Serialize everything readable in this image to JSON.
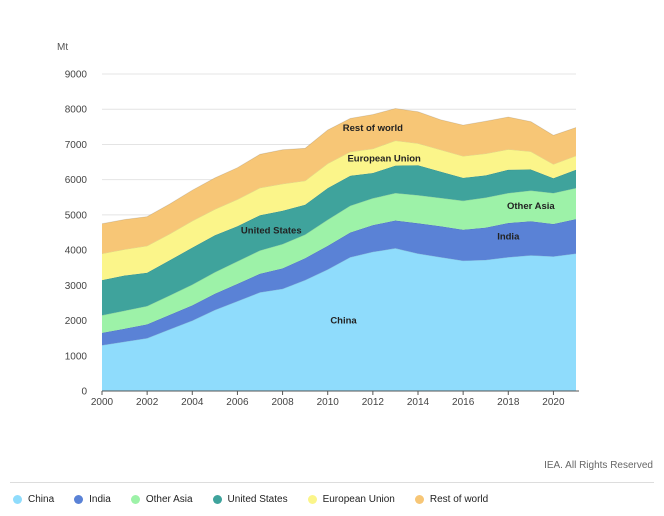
{
  "chart_data": {
    "type": "area",
    "stacked": true,
    "unit_label": "Mt",
    "x": [
      2000,
      2001,
      2002,
      2003,
      2004,
      2005,
      2006,
      2007,
      2008,
      2009,
      2010,
      2011,
      2012,
      2013,
      2014,
      2015,
      2016,
      2017,
      2018,
      2019,
      2020,
      2021
    ],
    "xticks": [
      2000,
      2002,
      2004,
      2006,
      2008,
      2010,
      2012,
      2014,
      2016,
      2018,
      2020
    ],
    "yticks": [
      0,
      1000,
      2000,
      3000,
      4000,
      5000,
      6000,
      7000,
      8000,
      9000
    ],
    "ylim": [
      0,
      9000
    ],
    "grid": true,
    "legend_position": "bottom",
    "series": [
      {
        "name": "China",
        "color": "#8fdcfc",
        "values": [
          1300,
          1400,
          1500,
          1750,
          2000,
          2300,
          2550,
          2800,
          2900,
          3150,
          3450,
          3800,
          3950,
          4050,
          3900,
          3800,
          3700,
          3720,
          3800,
          3850,
          3820,
          3900
        ]
      },
      {
        "name": "India",
        "color": "#5a82d6",
        "values": [
          350,
          370,
          390,
          410,
          430,
          460,
          490,
          530,
          580,
          620,
          670,
          700,
          760,
          790,
          860,
          880,
          880,
          920,
          970,
          970,
          920,
          980
        ]
      },
      {
        "name": "Other Asia",
        "color": "#9df2a8",
        "values": [
          500,
          510,
          520,
          550,
          590,
          610,
          640,
          660,
          690,
          670,
          740,
          760,
          760,
          780,
          800,
          800,
          820,
          850,
          850,
          870,
          880,
          880
        ]
      },
      {
        "name": "United States",
        "color": "#3fa39c",
        "values": [
          1000,
          1000,
          950,
          1000,
          1050,
          1050,
          1000,
          1000,
          950,
          850,
          900,
          850,
          720,
          780,
          850,
          750,
          650,
          630,
          660,
          600,
          420,
          520
        ]
      },
      {
        "name": "European Union",
        "color": "#fbf58a",
        "values": [
          750,
          740,
          760,
          750,
          760,
          740,
          760,
          780,
          760,
          680,
          700,
          680,
          690,
          710,
          620,
          620,
          620,
          620,
          580,
          510,
          400,
          400
        ]
      },
      {
        "name": "Rest of world",
        "color": "#f7c676",
        "values": [
          850,
          850,
          830,
          850,
          870,
          890,
          900,
          950,
          970,
          920,
          950,
          950,
          970,
          910,
          900,
          850,
          880,
          920,
          920,
          850,
          820,
          800
        ]
      }
    ],
    "annotations": [
      {
        "text": "China",
        "x": 2010.7,
        "y": 2000
      },
      {
        "text": "India",
        "x": 2018,
        "y": 4390
      },
      {
        "text": "Other Asia",
        "x": 2019,
        "y": 5250
      },
      {
        "text": "United States",
        "x": 2007.5,
        "y": 4560
      },
      {
        "text": "European Union",
        "x": 2012.5,
        "y": 6600
      },
      {
        "text": "Rest of world",
        "x": 2012,
        "y": 7470
      }
    ]
  },
  "credit": "IEA. All Rights Reserved"
}
